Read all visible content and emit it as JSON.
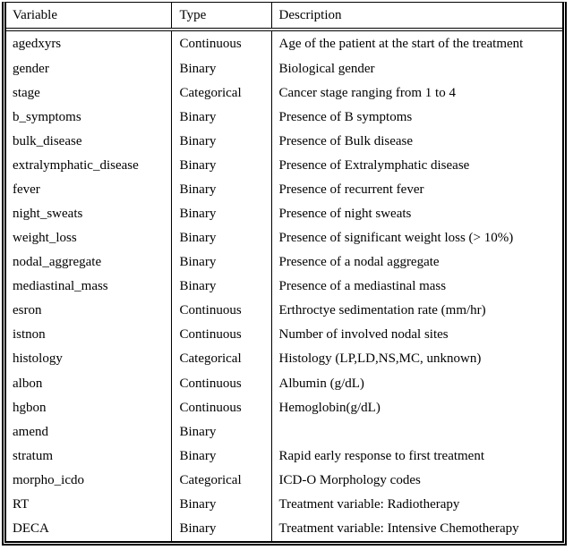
{
  "colors": {
    "background": "#ffffff",
    "text": "#000000",
    "border": "#000000"
  },
  "table": {
    "columns": {
      "variable": "Variable",
      "type": "Type",
      "description": "Description"
    },
    "rows": [
      {
        "variable": "agedxyrs",
        "type": "Continuous",
        "description": "Age of the patient at the start of the treatment"
      },
      {
        "variable": "gender",
        "type": "Binary",
        "description": "Biological gender"
      },
      {
        "variable": "stage",
        "type": "Categorical",
        "description": "Cancer stage ranging from 1 to 4"
      },
      {
        "variable": "b_symptoms",
        "type": "Binary",
        "description": "Presence of B symptoms"
      },
      {
        "variable": "bulk_disease",
        "type": "Binary",
        "description": "Presence of Bulk disease"
      },
      {
        "variable": "extralymphatic_disease",
        "type": "Binary",
        "description": "Presence of Extralymphatic disease"
      },
      {
        "variable": "fever",
        "type": "Binary",
        "description": "Presence of recurrent fever"
      },
      {
        "variable": "night_sweats",
        "type": "Binary",
        "description": "Presence of night sweats"
      },
      {
        "variable": "weight_loss",
        "type": "Binary",
        "description": "Presence of significant weight loss (> 10%)"
      },
      {
        "variable": "nodal_aggregate",
        "type": "Binary",
        "description": "Presence of a nodal aggregate"
      },
      {
        "variable": "mediastinal_mass",
        "type": "Binary",
        "description": "Presence of a mediastinal mass"
      },
      {
        "variable": "esron",
        "type": "Continuous",
        "description": "Erthroctye sedimentation rate (mm/hr)"
      },
      {
        "variable": "istnon",
        "type": "Continuous",
        "description": "Number of involved nodal sites"
      },
      {
        "variable": "histology",
        "type": "Categorical",
        "description": "Histology (LP,LD,NS,MC, unknown)"
      },
      {
        "variable": "albon",
        "type": "Continuous",
        "description": "Albumin (g/dL)"
      },
      {
        "variable": "hgbon",
        "type": "Continuous",
        "description": "Hemoglobin(g/dL)"
      },
      {
        "variable": "amend",
        "type": "Binary",
        "description": ""
      },
      {
        "variable": "stratum",
        "type": "Binary",
        "description": "Rapid early response to first treatment"
      },
      {
        "variable": "morpho_icdo",
        "type": "Categorical",
        "description": "ICD-O Morphology codes"
      },
      {
        "variable": "RT",
        "type": "Binary",
        "description": "Treatment variable: Radiotherapy"
      },
      {
        "variable": "DECA",
        "type": "Binary",
        "description": "Treatment variable: Intensive Chemotherapy"
      }
    ]
  }
}
